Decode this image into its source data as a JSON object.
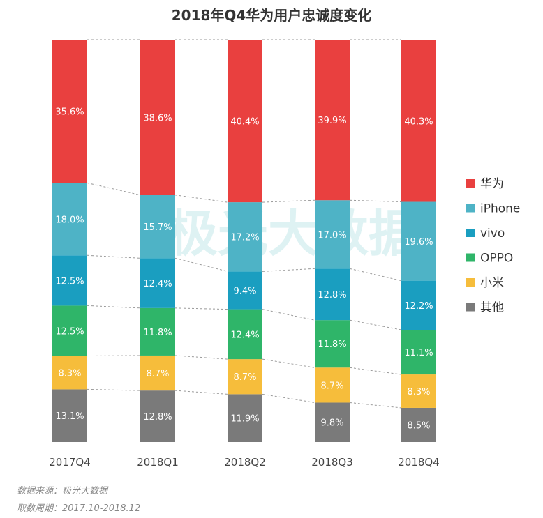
{
  "chart_data": {
    "type": "bar",
    "stacked": true,
    "title": "2018年Q4华为用户忠诚度变化",
    "categories": [
      "2017Q4",
      "2018Q1",
      "2018Q2",
      "2018Q3",
      "2018Q4"
    ],
    "series": [
      {
        "name": "其他",
        "color": "#7a7a7a",
        "values": [
          13.1,
          12.8,
          11.9,
          9.8,
          8.5
        ],
        "labels": [
          "13.1%",
          "12.8%",
          "11.9%",
          "9.8%",
          "8.5%"
        ]
      },
      {
        "name": "小米",
        "color": "#f6bd3b",
        "values": [
          8.3,
          8.7,
          8.7,
          8.7,
          8.3
        ],
        "labels": [
          "8.3%",
          "8.7%",
          "8.7%",
          "8.7%",
          "8.3%"
        ]
      },
      {
        "name": "OPPO",
        "color": "#2fb569",
        "values": [
          12.5,
          11.8,
          12.4,
          11.8,
          11.1
        ],
        "labels": [
          "12.5%",
          "11.8%",
          "12.4%",
          "11.8%",
          "11.1%"
        ]
      },
      {
        "name": "vivo",
        "color": "#1a9ec0",
        "values": [
          12.5,
          12.4,
          9.4,
          12.8,
          12.2
        ],
        "labels": [
          "12.5%",
          "12.4%",
          "9.4%",
          "12.8%",
          "12.2%"
        ]
      },
      {
        "name": "iPhone",
        "color": "#4eb3c6",
        "values": [
          18.0,
          15.7,
          17.2,
          17.0,
          19.6
        ],
        "labels": [
          "18.0%",
          "15.7%",
          "17.2%",
          "17.0%",
          "19.6%"
        ]
      },
      {
        "name": "华为",
        "color": "#e9403f",
        "values": [
          35.6,
          38.6,
          40.4,
          39.9,
          40.3
        ],
        "labels": [
          "35.6%",
          "38.6%",
          "40.4%",
          "39.9%",
          "40.3%"
        ]
      }
    ],
    "legend": [
      "华为",
      "iPhone",
      "vivo",
      "OPPO",
      "小米",
      "其他"
    ],
    "legend_position": "right",
    "ylim": [
      0,
      100
    ]
  },
  "watermark": "极光大数据",
  "footer": {
    "source": "数据来源：极光大数据",
    "period": "取数周期：2017.10-2018.12"
  }
}
